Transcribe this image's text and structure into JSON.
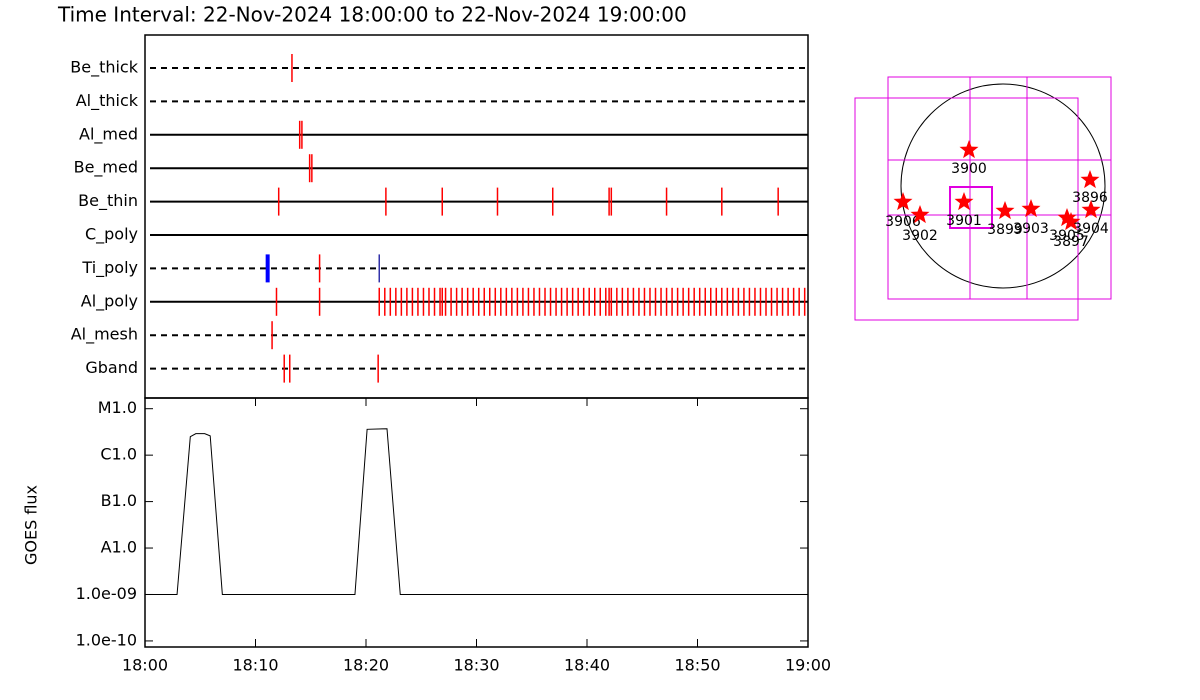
{
  "title": "Time Interval: 22-Nov-2024 18:00:00 to 22-Nov-2024 19:00:00",
  "chart_data": [
    {
      "type": "event",
      "xlim": [
        0,
        60
      ],
      "color": "#ff0000",
      "rows": [
        {
          "name": "Be_thick",
          "style": "dashed",
          "events": [
            13.3
          ]
        },
        {
          "name": "Al_thick",
          "style": "dashed",
          "events": []
        },
        {
          "name": "Al_med",
          "style": "solid",
          "events": [
            14.0,
            14.2
          ]
        },
        {
          "name": "Be_med",
          "style": "solid",
          "events": [
            14.9,
            15.1
          ]
        },
        {
          "name": "Be_thin",
          "style": "solid",
          "events": [
            12.1,
            21.8,
            26.9,
            31.9,
            36.9,
            42.0,
            42.2,
            47.2,
            52.2,
            57.3
          ]
        },
        {
          "name": "C_poly",
          "style": "solid",
          "events": []
        },
        {
          "name": "Ti_poly",
          "style": "dashed",
          "events": [
            11.1,
            15.8,
            21.2
          ],
          "event_colors": [
            "#0000ff",
            "#ff0000",
            "#3333aa"
          ]
        },
        {
          "name": "Al_poly",
          "style": "solid",
          "events": [
            11.9,
            15.8,
            21.2,
            21.7,
            22.2,
            22.7,
            23.2,
            23.7,
            24.2,
            24.7,
            25.2,
            25.7,
            26.2,
            26.7,
            26.9,
            27.2,
            27.7,
            28.2,
            28.7,
            29.2,
            29.7,
            30.2,
            30.7,
            31.2,
            31.7,
            32.2,
            32.7,
            33.2,
            33.7,
            34.2,
            34.7,
            35.2,
            35.7,
            36.2,
            36.7,
            37.2,
            37.7,
            38.2,
            38.7,
            39.2,
            39.7,
            40.2,
            40.7,
            41.2,
            41.7,
            42.0,
            42.2,
            42.7,
            43.2,
            43.7,
            44.2,
            44.7,
            45.2,
            45.7,
            46.2,
            46.7,
            47.2,
            47.7,
            48.2,
            48.7,
            49.2,
            49.7,
            50.2,
            50.7,
            51.2,
            51.7,
            52.2,
            52.7,
            53.2,
            53.7,
            54.2,
            54.7,
            55.2,
            55.7,
            56.2,
            56.7,
            57.2,
            57.7,
            58.2,
            58.7,
            59.2,
            59.7
          ]
        },
        {
          "name": "Al_mesh",
          "style": "dashed",
          "events": [
            11.5
          ]
        },
        {
          "name": "Gband",
          "style": "dashed",
          "events": [
            12.6,
            13.1,
            21.1
          ]
        }
      ]
    },
    {
      "type": "line",
      "ylabel": "GOES flux",
      "log": true,
      "color": "#000000",
      "x": [
        0,
        2.9,
        4.1,
        4.6,
        5.4,
        5.9,
        7.0,
        19.0,
        20.1,
        21.9,
        23.1,
        60
      ],
      "values": [
        1e-09,
        1e-09,
        2.5e-06,
        2.9e-06,
        2.9e-06,
        2.6e-06,
        1e-09,
        1e-09,
        3.6e-06,
        3.7e-06,
        1e-09,
        1e-09
      ],
      "xlim": [
        0,
        60
      ],
      "xticks": [
        {
          "value": 0,
          "label": "18:00"
        },
        {
          "value": 10,
          "label": "18:10"
        },
        {
          "value": 20,
          "label": "18:20"
        },
        {
          "value": 30,
          "label": "18:30"
        },
        {
          "value": 40,
          "label": "18:40"
        },
        {
          "value": 50,
          "label": "18:50"
        },
        {
          "value": 60,
          "label": "19:00"
        }
      ],
      "ylim": [
        7.4e-11,
        1.7e-05
      ],
      "yticks": [
        {
          "value": 1e-10,
          "label": "1.0e-10"
        },
        {
          "value": 1e-09,
          "label": "1.0e-09"
        },
        {
          "value": 1e-08,
          "label": "A1.0"
        },
        {
          "value": 1e-07,
          "label": "B1.0"
        },
        {
          "value": 1e-06,
          "label": "C1.0"
        },
        {
          "value": 1e-05,
          "label": "M1.0"
        }
      ]
    }
  ],
  "map": {
    "regions": [
      "3900",
      "3906",
      "3902",
      "3901",
      "3899",
      "3903",
      "3905",
      "3897",
      "3896",
      "3904"
    ]
  }
}
